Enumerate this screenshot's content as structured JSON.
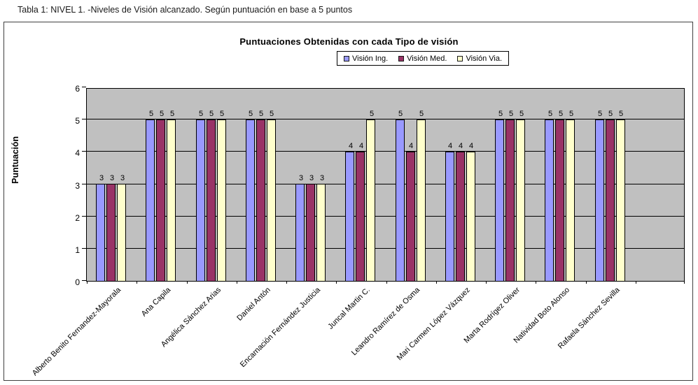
{
  "caption": "Tabla 1: NIVEL 1. -Niveles de Visión alcanzado. Según puntuación en base a 5 puntos",
  "chart_data": {
    "type": "bar",
    "title": "Puntuaciones Obtenidas con cada Tipo de visión",
    "ylabel": "Puntuación",
    "xlabel": "",
    "ylim": [
      0,
      6
    ],
    "yticks": [
      0,
      1,
      2,
      3,
      4,
      5,
      6
    ],
    "grid": true,
    "data_labels": true,
    "legend_position": "top-center",
    "plot_background": "#C0C0C0",
    "empty_trailing_slots": 1,
    "categories": [
      "Alberto Benito Fernandez-Mayorala",
      "Ana Capila",
      "Angélica Sánchez Arias",
      "Daniel Antón",
      "Encarnación Fernández Justicia",
      "Juncal Martin C.",
      "Leandro Ramírez de Osma",
      "Mari Carmen López Vázquez",
      "Marta Rodrígez Oliver",
      "Natividad Boto Alonso",
      "Rafaela Sánchez Sevilla"
    ],
    "series": [
      {
        "name": "Visión Ing.",
        "color": "#9999FF",
        "values": [
          3,
          5,
          5,
          5,
          3,
          4,
          5,
          4,
          5,
          5,
          5
        ]
      },
      {
        "name": "Visión Med.",
        "color": "#993366",
        "values": [
          3,
          5,
          5,
          5,
          3,
          4,
          4,
          4,
          5,
          5,
          5
        ]
      },
      {
        "name": "Visión Via.",
        "color": "#FFFFCC",
        "values": [
          3,
          5,
          5,
          5,
          3,
          5,
          5,
          4,
          5,
          5,
          5
        ]
      }
    ]
  }
}
